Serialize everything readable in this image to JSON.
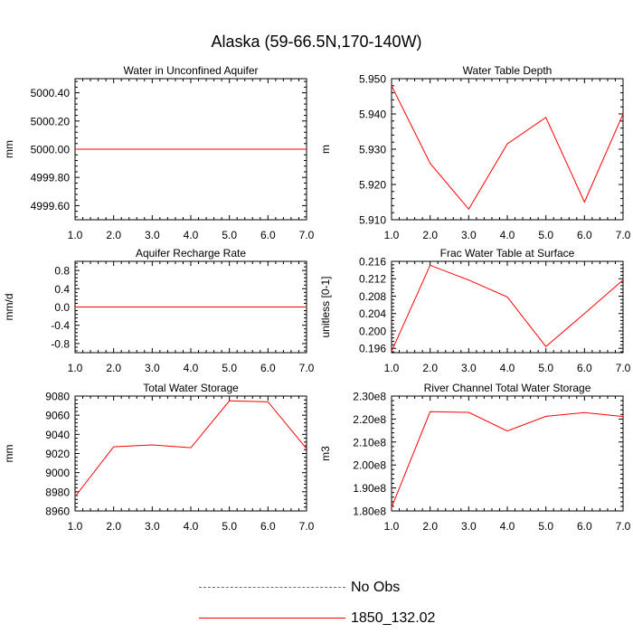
{
  "title": "Alaska (59-66.5N,170-140W)",
  "colors": {
    "series": "#ff0000",
    "no_obs": "#6b6b8a",
    "axis": "#000000"
  },
  "legend": {
    "entries": [
      {
        "label": "No Obs",
        "style": "dashed",
        "color": "#6b6b8a"
      },
      {
        "label": "1850_132.02",
        "style": "solid",
        "color": "#ff0000"
      }
    ]
  },
  "chart_data": [
    {
      "type": "line",
      "title": "Water in Unconfined Aquifer",
      "ylabel": "mm",
      "xlim": [
        1,
        7
      ],
      "ylim": [
        4999.5,
        5000.5
      ],
      "xticks": [
        1,
        2,
        3,
        4,
        5,
        6,
        7
      ],
      "xtick_labels": [
        "1.0",
        "2.0",
        "3.0",
        "4.0",
        "5.0",
        "6.0",
        "7.0"
      ],
      "yticks": [
        4999.6,
        4999.8,
        5000.0,
        5000.2,
        5000.4
      ],
      "ytick_labels": [
        "4999.60",
        "4999.80",
        "5000.00",
        "5000.20",
        "5000.40"
      ],
      "series": [
        {
          "name": "1850_132.02",
          "x": [
            1,
            2,
            3,
            4,
            5,
            6,
            7
          ],
          "y": [
            5000,
            5000,
            5000,
            5000,
            5000,
            5000,
            5000
          ]
        }
      ]
    },
    {
      "type": "line",
      "title": "Water Table Depth",
      "ylabel": "m",
      "xlim": [
        1,
        7
      ],
      "ylim": [
        5.91,
        5.95
      ],
      "xticks": [
        1,
        2,
        3,
        4,
        5,
        6,
        7
      ],
      "xtick_labels": [
        "1.0",
        "2.0",
        "3.0",
        "4.0",
        "5.0",
        "6.0",
        "7.0"
      ],
      "yticks": [
        5.91,
        5.92,
        5.93,
        5.94,
        5.95
      ],
      "ytick_labels": [
        "5.910",
        "5.920",
        "5.930",
        "5.940",
        "5.950"
      ],
      "series": [
        {
          "name": "1850_132.02",
          "x": [
            1,
            2,
            3,
            4,
            5,
            6,
            7
          ],
          "y": [
            5.948,
            5.926,
            5.913,
            5.9315,
            5.939,
            5.915,
            5.94
          ]
        }
      ]
    },
    {
      "type": "line",
      "title": "Aquifer Recharge Rate",
      "ylabel": "mm/d",
      "xlim": [
        1,
        7
      ],
      "ylim": [
        -1,
        1
      ],
      "xticks": [
        1,
        2,
        3,
        4,
        5,
        6,
        7
      ],
      "xtick_labels": [
        "1.0",
        "2.0",
        "3.0",
        "4.0",
        "5.0",
        "6.0",
        "7.0"
      ],
      "yticks": [
        -0.8,
        -0.4,
        0.0,
        0.4,
        0.8
      ],
      "ytick_labels": [
        "-0.8",
        "-0.4",
        "0.0",
        "0.4",
        "0.8"
      ],
      "series": [
        {
          "name": "1850_132.02",
          "x": [
            1,
            2,
            3,
            4,
            5,
            6,
            7
          ],
          "y": [
            0,
            0,
            0,
            0,
            0,
            0,
            0
          ]
        }
      ]
    },
    {
      "type": "line",
      "title": "Frac Water Table at Surface",
      "ylabel": "unitless [0-1]",
      "xlim": [
        1,
        7
      ],
      "ylim": [
        0.195,
        0.216
      ],
      "xticks": [
        1,
        2,
        3,
        4,
        5,
        6,
        7
      ],
      "xtick_labels": [
        "1.0",
        "2.0",
        "3.0",
        "4.0",
        "5.0",
        "6.0",
        "7.0"
      ],
      "yticks": [
        0.196,
        0.2,
        0.204,
        0.208,
        0.212,
        0.216
      ],
      "ytick_labels": [
        "0.196",
        "0.200",
        "0.204",
        "0.208",
        "0.212",
        "0.216"
      ],
      "series": [
        {
          "name": "1850_132.02",
          "x": [
            1,
            2,
            3,
            4,
            5,
            6,
            7
          ],
          "y": [
            0.1953,
            0.2151,
            0.2117,
            0.2078,
            0.1964,
            0.204,
            0.2117
          ]
        }
      ]
    },
    {
      "type": "line",
      "title": "Total Water Storage",
      "ylabel": "mm",
      "xlim": [
        1,
        7
      ],
      "ylim": [
        8960,
        9080
      ],
      "xticks": [
        1,
        2,
        3,
        4,
        5,
        6,
        7
      ],
      "xtick_labels": [
        "1.0",
        "2.0",
        "3.0",
        "4.0",
        "5.0",
        "6.0",
        "7.0"
      ],
      "yticks": [
        8960,
        8980,
        9000,
        9020,
        9040,
        9060,
        9080
      ],
      "ytick_labels": [
        "8960",
        "8980",
        "9000",
        "9020",
        "9040",
        "9060",
        "9080"
      ],
      "series": [
        {
          "name": "1850_132.02",
          "x": [
            1,
            2,
            3,
            4,
            5,
            6,
            7
          ],
          "y": [
            8975,
            9027,
            9029,
            9026,
            9075,
            9074,
            9025
          ]
        }
      ]
    },
    {
      "type": "line",
      "title": "River Channel Total Water Storage",
      "ylabel": "m3",
      "xlim": [
        1,
        7
      ],
      "ylim": [
        180000000,
        230000000
      ],
      "xticks": [
        1,
        2,
        3,
        4,
        5,
        6,
        7
      ],
      "xtick_labels": [
        "1.0",
        "2.0",
        "3.0",
        "4.0",
        "5.0",
        "6.0",
        "7.0"
      ],
      "yticks": [
        180000000,
        190000000,
        200000000,
        210000000,
        220000000,
        230000000
      ],
      "ytick_labels": [
        "1.80e8",
        "1.90e8",
        "2.00e8",
        "2.10e8",
        "2.20e8",
        "2.30e8"
      ],
      "series": [
        {
          "name": "1850_132.02",
          "x": [
            1,
            2,
            3,
            4,
            5,
            6,
            7
          ],
          "y": [
            181500000,
            223200000,
            222900000,
            214800000,
            221200000,
            222800000,
            221100000
          ]
        }
      ]
    }
  ]
}
